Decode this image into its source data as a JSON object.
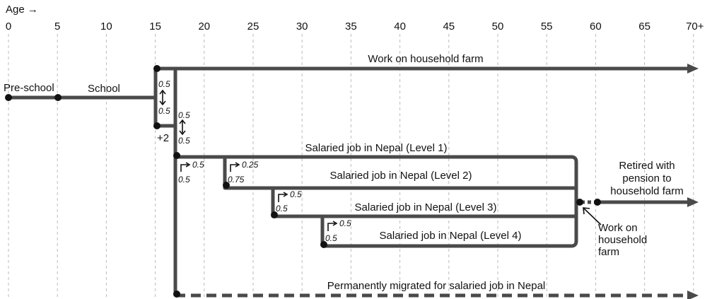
{
  "axis": {
    "label": "Age →",
    "ticks": [
      "0",
      "5",
      "10",
      "15",
      "20",
      "25",
      "30",
      "35",
      "40",
      "45",
      "50",
      "55",
      "60",
      "65",
      "70+"
    ]
  },
  "stages": {
    "preschool": "Pre-school",
    "school": "School",
    "plus_two": "+2"
  },
  "tracks": [
    "Work on household farm",
    "Salaried job in Nepal (Level 1)",
    "Salaried job in Nepal (Level 2)",
    "Salaried job in Nepal (Level 3)",
    "Salaried job in Nepal (Level 4)",
    "Permanently migrated for salaried job in Nepal"
  ],
  "retired": [
    "Retired with",
    "pension to",
    "household farm"
  ],
  "work_on_farm": [
    "Work on",
    "household",
    "farm"
  ],
  "probabilities": [
    "0.5",
    "0.5",
    "0.5",
    "0.5",
    "0.5",
    "0.5",
    "0.25",
    "0.75",
    "0.5",
    "0.5",
    "0.5",
    "0.5"
  ]
}
